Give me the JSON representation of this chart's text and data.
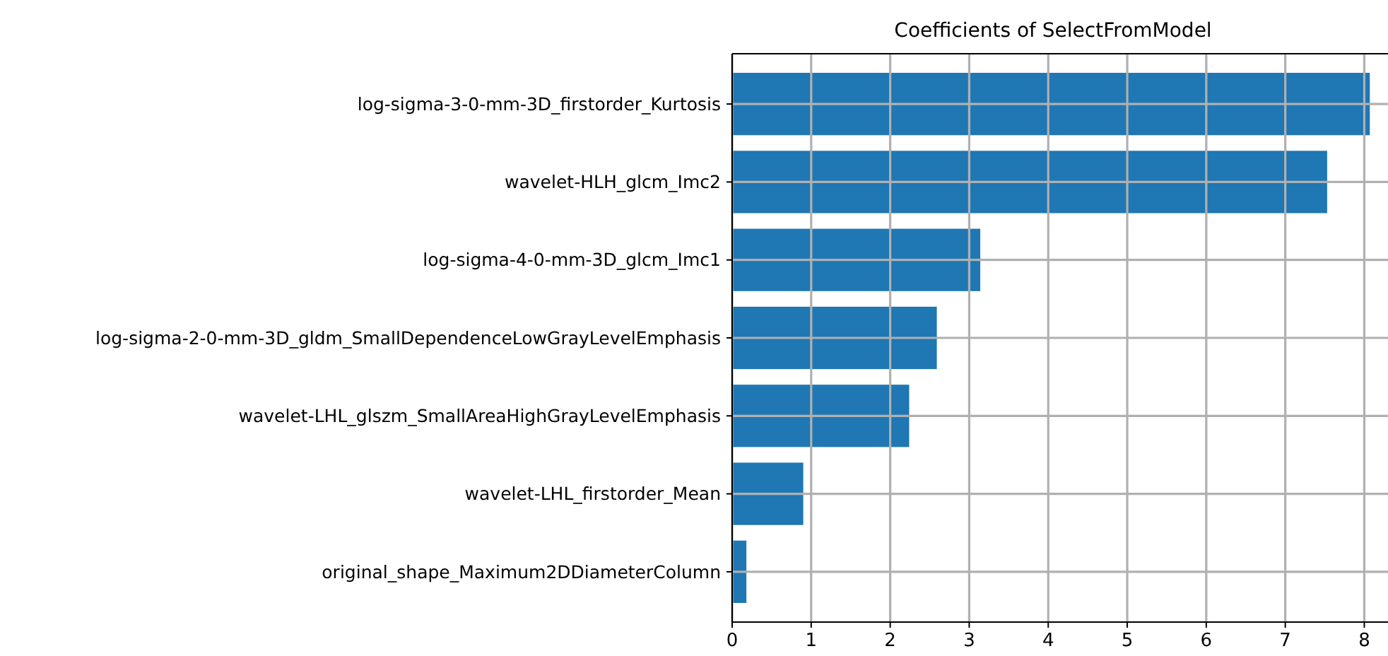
{
  "chart_data": {
    "type": "bar",
    "orientation": "horizontal",
    "title": "Coefficients of SelectFromModel",
    "categories": [
      "log-sigma-3-0-mm-3D_firstorder_Kurtosis",
      "wavelet-HLH_glcm_Imc2",
      "log-sigma-4-0-mm-3D_glcm_Imc1",
      "log-sigma-2-0-mm-3D_gldm_SmallDependenceLowGrayLevelEmphasis",
      "wavelet-LHL_glszm_SmallAreaHighGrayLevelEmphasis",
      "wavelet-LHL_firstorder_Mean",
      "original_shape_Maximum2DDiameterColumn"
    ],
    "values": [
      8.07,
      7.53,
      3.14,
      2.59,
      2.24,
      0.9,
      0.18
    ],
    "color": "#1f77b4",
    "xlim": [
      0,
      8.3
    ],
    "xticks": [
      0,
      1,
      2,
      3,
      4,
      5,
      6,
      7,
      8
    ],
    "grid": true
  }
}
